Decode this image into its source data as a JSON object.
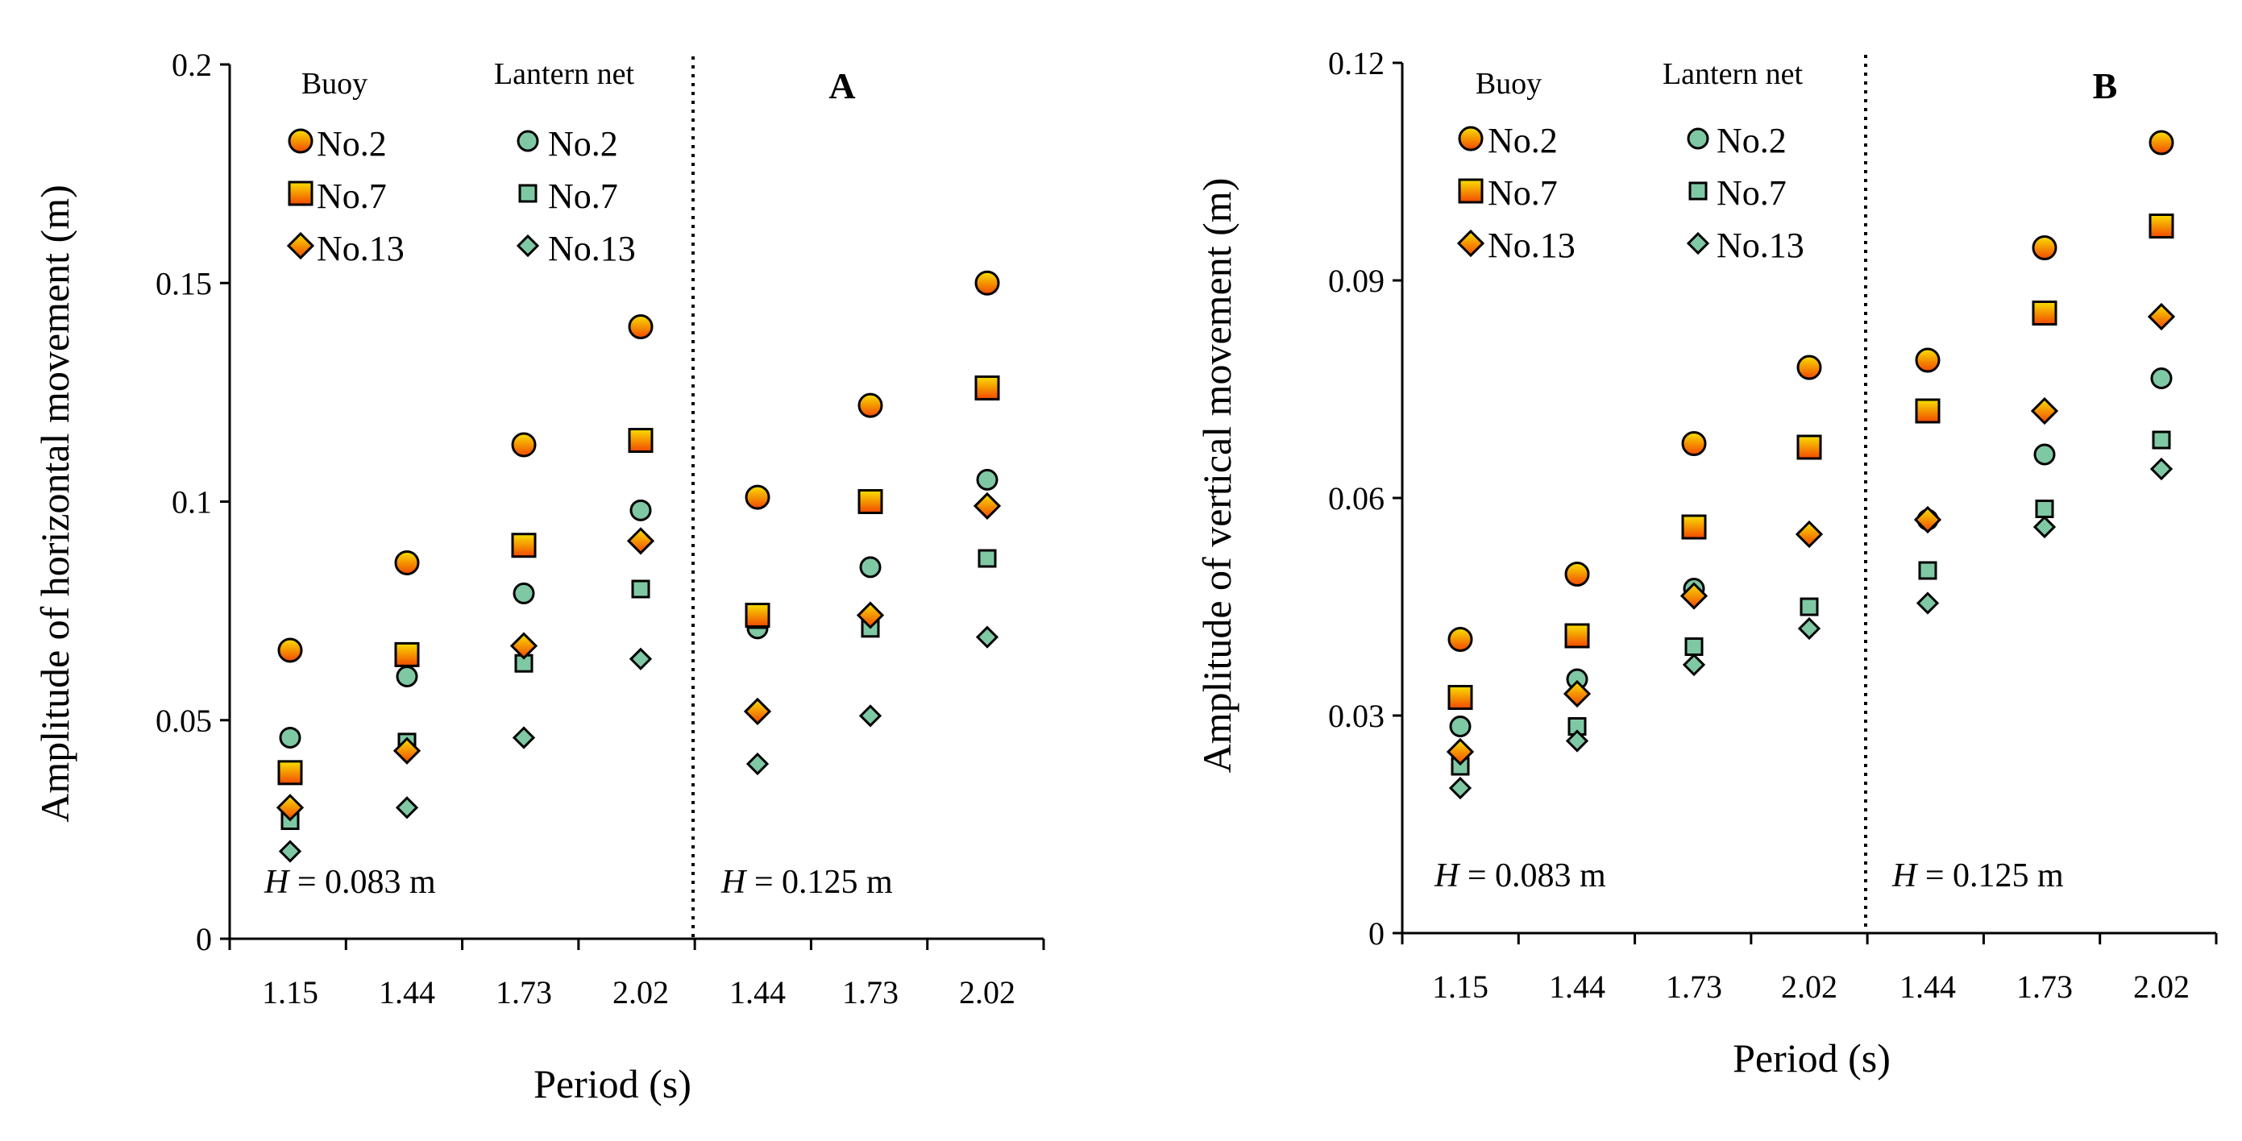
{
  "colors": {
    "buoy_gradient_top": "#f8e000",
    "buoy_gradient_bottom": "#f24800",
    "lantern_fill": "#7fc8a4",
    "marker_stroke": "#000000",
    "axis": "#000000"
  },
  "legend": {
    "buoy_heading": "Buoy",
    "lantern_heading": "Lantern net",
    "entries": [
      {
        "group": "buoy",
        "marker": "circle",
        "label": "No.2"
      },
      {
        "group": "buoy",
        "marker": "square",
        "label": "No.7"
      },
      {
        "group": "buoy",
        "marker": "diamond",
        "label": "No.13"
      },
      {
        "group": "lantern",
        "marker": "circle",
        "label": "No.2"
      },
      {
        "group": "lantern",
        "marker": "square",
        "label": "No.7"
      },
      {
        "group": "lantern",
        "marker": "diamond",
        "label": "No.13"
      }
    ]
  },
  "chart_data": [
    {
      "type": "scatter",
      "panel": "A",
      "xlabel": "Period (s)",
      "ylabel": "Amplitude of horizontal movement (m)",
      "categories": [
        "1.15",
        "1.44",
        "1.73",
        "2.02",
        "1.44",
        "1.73",
        "2.02"
      ],
      "ylim": [
        0,
        0.2
      ],
      "yticks": [
        "0",
        "0.05",
        "0.1",
        "0.15",
        "0.2"
      ],
      "conditions": [
        {
          "label_italic": "H",
          "label_rest": " = 0.083 m",
          "categories_index": [
            0,
            1,
            2,
            3
          ]
        },
        {
          "label_italic": "H",
          "label_rest": " = 0.125 m",
          "categories_index": [
            4,
            5,
            6
          ]
        }
      ],
      "series": [
        {
          "name": "Buoy No.2",
          "group": "buoy",
          "marker": "circle",
          "values": [
            0.066,
            0.086,
            0.113,
            0.14,
            0.101,
            0.122,
            0.15
          ]
        },
        {
          "name": "Buoy No.7",
          "group": "buoy",
          "marker": "square",
          "values": [
            0.038,
            0.065,
            0.09,
            0.114,
            0.074,
            0.1,
            0.126
          ]
        },
        {
          "name": "Buoy No.13",
          "group": "buoy",
          "marker": "diamond",
          "values": [
            0.03,
            0.043,
            0.067,
            0.091,
            0.052,
            0.074,
            0.099
          ]
        },
        {
          "name": "Lantern net No.2",
          "group": "lantern",
          "marker": "circle",
          "values": [
            0.046,
            0.06,
            0.079,
            0.098,
            0.071,
            0.085,
            0.105
          ]
        },
        {
          "name": "Lantern net No.7",
          "group": "lantern",
          "marker": "square",
          "values": [
            0.027,
            0.045,
            0.063,
            0.08,
            0.073,
            0.071,
            0.087
          ]
        },
        {
          "name": "Lantern net No.13",
          "group": "lantern",
          "marker": "diamond",
          "values": [
            0.02,
            0.03,
            0.046,
            0.064,
            0.04,
            0.051,
            0.069
          ]
        }
      ]
    },
    {
      "type": "scatter",
      "panel": "B",
      "xlabel": "Period (s)",
      "ylabel": "Amplitude of vertical movement (m)",
      "categories": [
        "1.15",
        "1.44",
        "1.73",
        "2.02",
        "1.44",
        "1.73",
        "2.02"
      ],
      "ylim": [
        0,
        0.12
      ],
      "yticks": [
        "0",
        "0.03",
        "0.06",
        "0.09",
        "0.12"
      ],
      "conditions": [
        {
          "label_italic": "H",
          "label_rest": " = 0.083 m",
          "categories_index": [
            0,
            1,
            2,
            3
          ]
        },
        {
          "label_italic": "H",
          "label_rest": " = 0.125 m",
          "categories_index": [
            4,
            5,
            6
          ]
        }
      ],
      "series": [
        {
          "name": "Buoy No.2",
          "group": "buoy",
          "marker": "circle",
          "values": [
            0.0405,
            0.0495,
            0.0675,
            0.078,
            0.079,
            0.0945,
            0.109
          ]
        },
        {
          "name": "Buoy No.7",
          "group": "buoy",
          "marker": "square",
          "values": [
            0.0325,
            0.041,
            0.056,
            0.067,
            0.072,
            0.0855,
            0.0975
          ]
        },
        {
          "name": "Buoy No.13",
          "group": "buoy",
          "marker": "diamond",
          "values": [
            0.025,
            0.033,
            0.0465,
            0.055,
            0.057,
            0.072,
            0.085
          ]
        },
        {
          "name": "Lantern net No.2",
          "group": "lantern",
          "marker": "circle",
          "values": [
            0.0285,
            0.035,
            0.0475,
            0.078,
            0.057,
            0.066,
            0.0765
          ]
        },
        {
          "name": "Lantern net No.7",
          "group": "lantern",
          "marker": "square",
          "values": [
            0.023,
            0.0285,
            0.0395,
            0.045,
            0.05,
            0.0585,
            0.068
          ]
        },
        {
          "name": "Lantern net No.13",
          "group": "lantern",
          "marker": "diamond",
          "values": [
            0.02,
            0.0265,
            0.037,
            0.042,
            0.0455,
            0.056,
            0.064
          ]
        }
      ]
    }
  ]
}
